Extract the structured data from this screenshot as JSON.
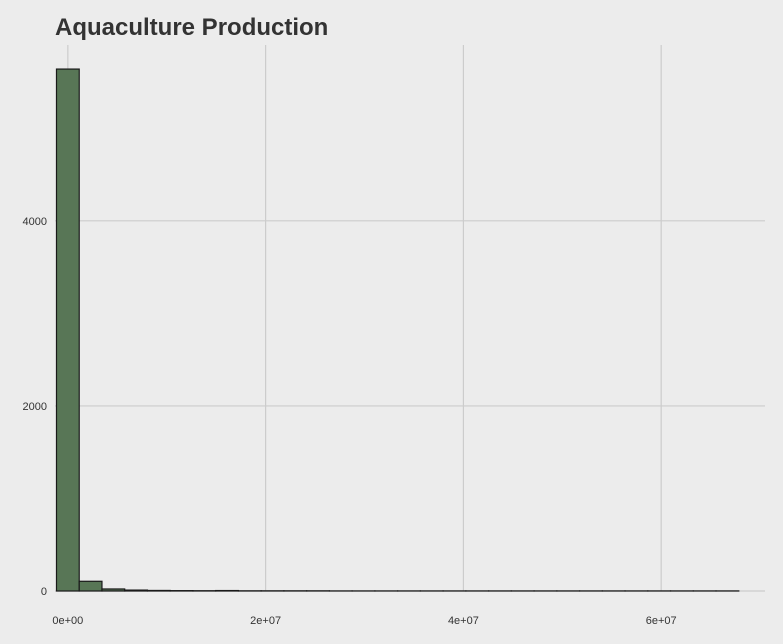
{
  "colors": {
    "background": "#ececec",
    "grid": "#cccccc",
    "bar_fill": "#587656",
    "bar_stroke": "#1a1a1a",
    "text": "#333333"
  },
  "chart_data": {
    "type": "bar",
    "title": "Aquaculture Production",
    "xlabel": "",
    "ylabel": "",
    "grid": true,
    "x_ticks": [
      {
        "value": 0,
        "label": "0e+00"
      },
      {
        "value": 20000000,
        "label": "2e+07"
      },
      {
        "value": 40000000,
        "label": "4e+07"
      },
      {
        "value": 60000000,
        "label": "6e+07"
      }
    ],
    "y_ticks": [
      {
        "value": 0,
        "label": "0"
      },
      {
        "value": 2000,
        "label": "2000"
      },
      {
        "value": 4000,
        "label": "4000"
      }
    ],
    "xlim": [
      -1300000,
      70500000
    ],
    "ylim": [
      0,
      5900
    ],
    "bin_width": 2300000,
    "bins": [
      {
        "start": -1150000,
        "count": 5640
      },
      {
        "start": 1150000,
        "count": 105
      },
      {
        "start": 3450000,
        "count": 22
      },
      {
        "start": 5750000,
        "count": 10
      },
      {
        "start": 8050000,
        "count": 6
      },
      {
        "start": 10350000,
        "count": 4
      },
      {
        "start": 12650000,
        "count": 3
      },
      {
        "start": 14950000,
        "count": 5
      },
      {
        "start": 17250000,
        "count": 2
      },
      {
        "start": 19550000,
        "count": 2
      },
      {
        "start": 21850000,
        "count": 2
      },
      {
        "start": 24150000,
        "count": 2
      },
      {
        "start": 26450000,
        "count": 1
      },
      {
        "start": 28750000,
        "count": 1
      },
      {
        "start": 31050000,
        "count": 1
      },
      {
        "start": 33350000,
        "count": 1
      },
      {
        "start": 35650000,
        "count": 1
      },
      {
        "start": 37950000,
        "count": 1
      },
      {
        "start": 40250000,
        "count": 1
      },
      {
        "start": 42550000,
        "count": 1
      },
      {
        "start": 44850000,
        "count": 1
      },
      {
        "start": 47150000,
        "count": 1
      },
      {
        "start": 49450000,
        "count": 1
      },
      {
        "start": 51750000,
        "count": 1
      },
      {
        "start": 54050000,
        "count": 1
      },
      {
        "start": 56350000,
        "count": 1
      },
      {
        "start": 58650000,
        "count": 1
      },
      {
        "start": 60950000,
        "count": 1
      },
      {
        "start": 63250000,
        "count": 1
      },
      {
        "start": 65550000,
        "count": 1
      }
    ]
  }
}
